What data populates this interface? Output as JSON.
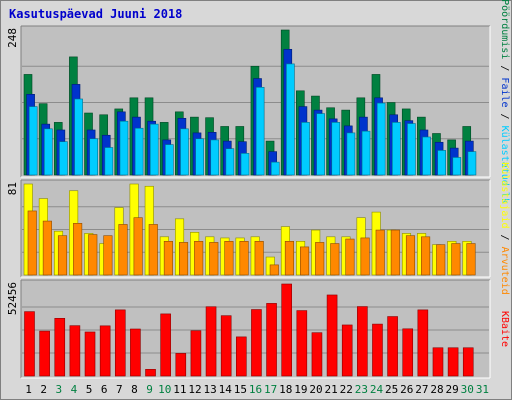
{
  "title": "Kasutuspäevad Juuni 2018",
  "colors": {
    "background": "#d8d8d8",
    "plot_bg": "#c0c0c0",
    "grid": "#8c8c8c",
    "title": "#0000cc",
    "pages": "#00ccff",
    "files": "#0033cc",
    "hits": "#008040",
    "visits": "#ff8800",
    "sites": "#ffff00",
    "kbytes": "#ff0000",
    "weekday_label": "#000000",
    "weekend_label": "#008040"
  },
  "right_labels": {
    "top": [
      {
        "text": "Pöördumisi",
        "color_key": "hits"
      },
      {
        "text": " / ",
        "color_key": "weekday_label"
      },
      {
        "text": "Faile",
        "color_key": "files"
      },
      {
        "text": " / ",
        "color_key": "weekday_label"
      },
      {
        "text": "Külastatud lk",
        "color_key": "pages"
      }
    ],
    "middle": [
      {
        "text": "Külastajaid",
        "color_key": "sites"
      },
      {
        "text": " / ",
        "color_key": "weekday_label"
      },
      {
        "text": "Arvuteid",
        "color_key": "visits"
      }
    ],
    "bottom": [
      {
        "text": "KBaite",
        "color_key": "kbytes"
      }
    ]
  },
  "chart_data": [
    {
      "type": "bar",
      "panel": "top",
      "ymax_label": "248",
      "ylim": [
        0,
        248
      ],
      "categories": [
        "1",
        "2",
        "3",
        "4",
        "5",
        "6",
        "7",
        "8",
        "9",
        "10",
        "11",
        "12",
        "13",
        "14",
        "15",
        "16",
        "17",
        "18",
        "19",
        "20",
        "21",
        "22",
        "23",
        "24",
        "25",
        "26",
        "27",
        "28",
        "29",
        "30",
        "31"
      ],
      "weekend": [
        false,
        false,
        true,
        true,
        false,
        false,
        false,
        false,
        true,
        true,
        false,
        false,
        false,
        false,
        false,
        true,
        true,
        false,
        false,
        false,
        false,
        false,
        true,
        true,
        false,
        false,
        false,
        false,
        false,
        true,
        true
      ],
      "series": [
        {
          "name": "Pöördumisi",
          "color_key": "hits",
          "values": [
            172,
            122,
            90,
            202,
            106,
            103,
            113,
            132,
            132,
            90,
            108,
            99,
            98,
            83,
            83,
            186,
            58,
            248,
            144,
            135,
            115,
            111,
            132,
            172,
            124,
            113,
            99,
            71,
            60,
            83,
            0
          ]
        },
        {
          "name": "Faile",
          "color_key": "files",
          "values": [
            138,
            87,
            77,
            155,
            77,
            68,
            108,
            99,
            92,
            60,
            97,
            72,
            73,
            58,
            57,
            165,
            40,
            215,
            117,
            111,
            96,
            84,
            99,
            132,
            103,
            93,
            77,
            56,
            46,
            58,
            0
          ]
        },
        {
          "name": "Külastatud lk",
          "color_key": "pages",
          "values": [
            117,
            79,
            57,
            130,
            62,
            47,
            92,
            80,
            87,
            52,
            79,
            62,
            60,
            45,
            37,
            150,
            22,
            190,
            90,
            105,
            90,
            72,
            75,
            123,
            90,
            88,
            65,
            42,
            30,
            40,
            0
          ]
        }
      ]
    },
    {
      "type": "bar",
      "panel": "middle",
      "ymax_label": "81",
      "ylim": [
        0,
        81
      ],
      "categories": [
        "1",
        "2",
        "3",
        "4",
        "5",
        "6",
        "7",
        "8",
        "9",
        "10",
        "11",
        "12",
        "13",
        "14",
        "15",
        "16",
        "17",
        "18",
        "19",
        "20",
        "21",
        "22",
        "23",
        "24",
        "25",
        "26",
        "27",
        "28",
        "29",
        "30",
        "31"
      ],
      "series": [
        {
          "name": "Külastajaid",
          "color_key": "sites",
          "values": [
            81,
            68,
            39,
            75,
            37,
            28,
            60,
            81,
            79,
            34,
            50,
            38,
            34,
            33,
            33,
            34,
            16,
            43,
            30,
            40,
            34,
            34,
            51,
            56,
            40,
            37,
            37,
            27,
            30,
            30,
            0
          ]
        },
        {
          "name": "Arvuteid",
          "color_key": "visits",
          "values": [
            57,
            48,
            35,
            46,
            36,
            35,
            45,
            51,
            45,
            30,
            29,
            30,
            29,
            30,
            30,
            30,
            9,
            30,
            25,
            29,
            28,
            32,
            33,
            40,
            40,
            35,
            34,
            27,
            28,
            28,
            0
          ]
        }
      ]
    },
    {
      "type": "bar",
      "panel": "bottom",
      "ymax_label": "52456",
      "ylim": [
        0,
        52456
      ],
      "categories": [
        "1",
        "2",
        "3",
        "4",
        "5",
        "6",
        "7",
        "8",
        "9",
        "10",
        "11",
        "12",
        "13",
        "14",
        "15",
        "16",
        "17",
        "18",
        "19",
        "20",
        "21",
        "22",
        "23",
        "24",
        "25",
        "26",
        "27",
        "28",
        "29",
        "30",
        "31"
      ],
      "series": [
        {
          "name": "KBaite",
          "color_key": "kbytes",
          "values": [
            36700,
            25600,
            32900,
            28700,
            25100,
            28600,
            37700,
            26800,
            3800,
            35400,
            12900,
            25800,
            39500,
            34400,
            22300,
            37900,
            41400,
            52456,
            37300,
            24700,
            46200,
            29100,
            39600,
            29600,
            33900,
            26900,
            37700,
            16100,
            16100,
            16100,
            0
          ]
        }
      ]
    }
  ]
}
